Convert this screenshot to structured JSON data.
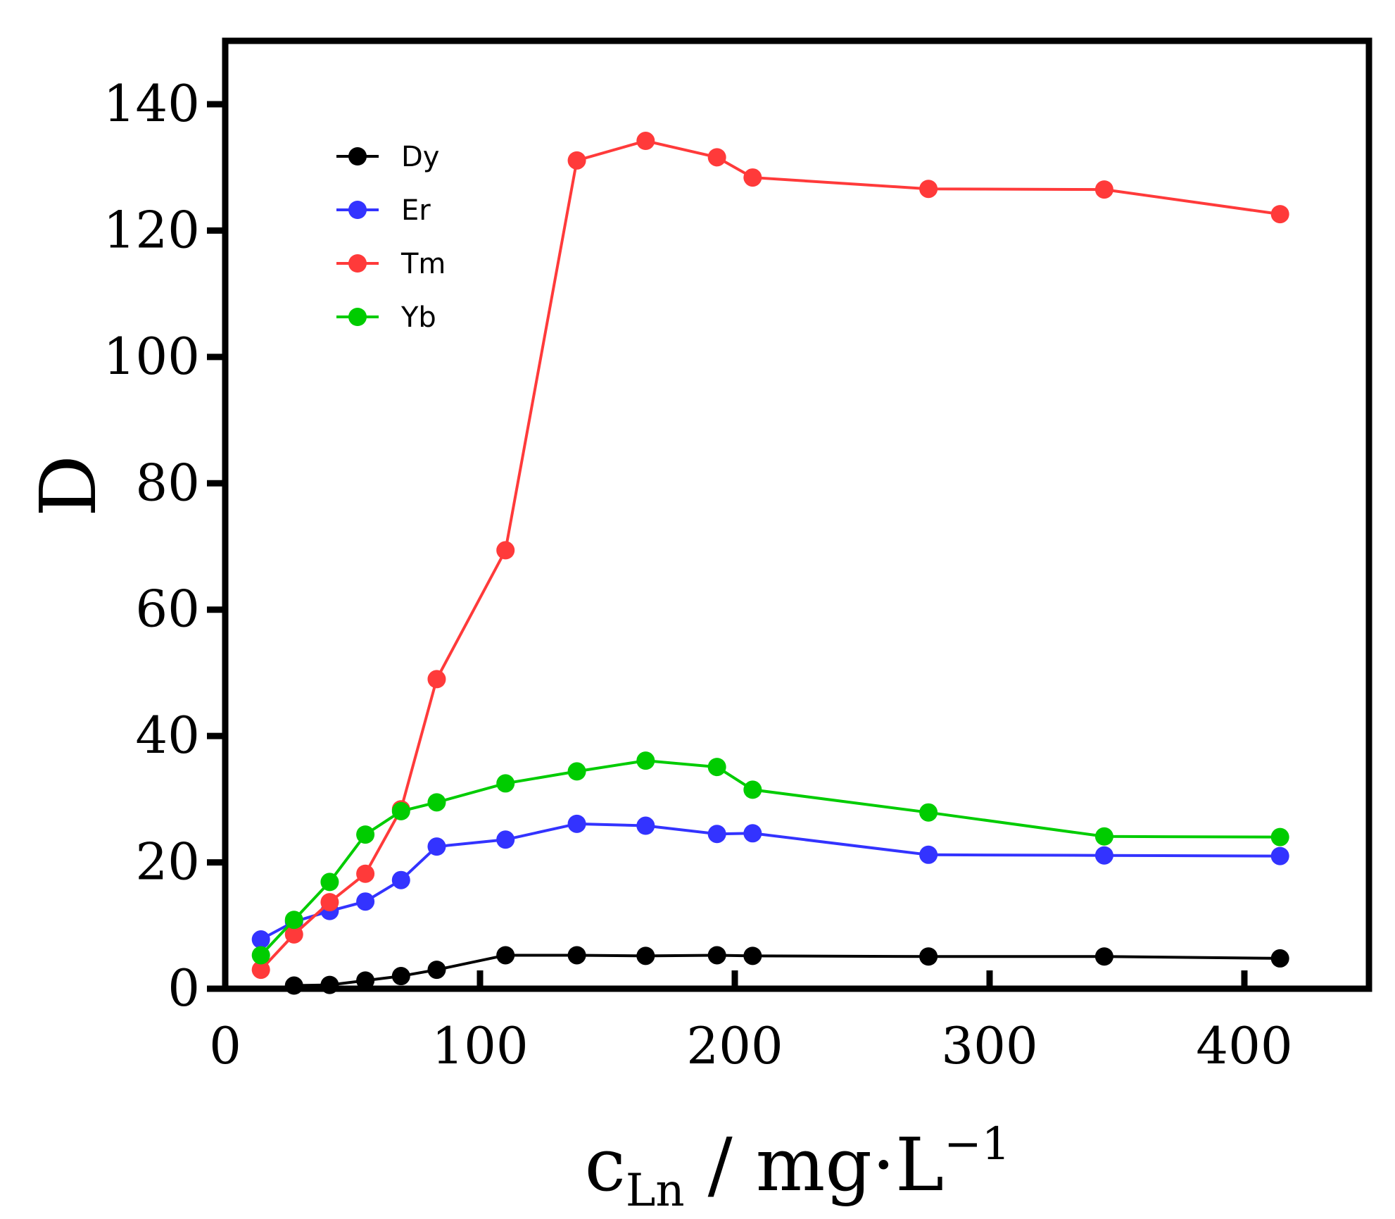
{
  "chart_data": {
    "type": "line",
    "title": "",
    "xlabel": "c_Ln / mg·L^-1",
    "xlabel_parts": {
      "base": "c",
      "subscript": "Ln",
      "rest": " / mg·L",
      "superscript": "−1"
    },
    "ylabel": "D",
    "xlim": [
      0,
      450
    ],
    "ylim": [
      0,
      150
    ],
    "xticks": [
      0,
      100,
      200,
      300,
      400
    ],
    "yticks": [
      0,
      20,
      40,
      60,
      80,
      100,
      120,
      140
    ],
    "grid": false,
    "legend_position": "top-left",
    "series": [
      {
        "name": "Dy",
        "color": "#000000",
        "x": [
          27,
          41,
          55,
          69,
          83,
          110,
          138,
          165,
          193,
          207,
          276,
          345,
          414
        ],
        "y": [
          0.5,
          0.6,
          1.3,
          2.0,
          3.0,
          5.3,
          5.3,
          5.2,
          5.3,
          5.2,
          5.1,
          5.1,
          4.8
        ]
      },
      {
        "name": "Er",
        "color": "#3333ff",
        "x": [
          14,
          27,
          41,
          55,
          69,
          83,
          110,
          138,
          165,
          193,
          207,
          276,
          345,
          414
        ],
        "y": [
          7.8,
          10.6,
          12.3,
          13.8,
          17.2,
          22.5,
          23.6,
          26.1,
          25.8,
          24.5,
          24.6,
          21.2,
          21.1,
          21.0
        ]
      },
      {
        "name": "Tm",
        "color": "#ff3a3a",
        "x": [
          14,
          27,
          41,
          55,
          69,
          83,
          110,
          138,
          165,
          193,
          207,
          276,
          345,
          414
        ],
        "y": [
          3.0,
          8.6,
          13.7,
          18.2,
          28.4,
          49.0,
          69.4,
          131.1,
          134.2,
          131.6,
          128.4,
          126.6,
          126.5,
          122.6
        ]
      },
      {
        "name": "Yb",
        "color": "#00cc00",
        "x": [
          14,
          27,
          41,
          55,
          69,
          83,
          110,
          138,
          165,
          193,
          207,
          276,
          345,
          414
        ],
        "y": [
          5.3,
          10.9,
          16.9,
          24.4,
          28.1,
          29.5,
          32.5,
          34.4,
          36.1,
          35.1,
          31.5,
          27.9,
          24.1,
          24.0
        ]
      }
    ]
  }
}
